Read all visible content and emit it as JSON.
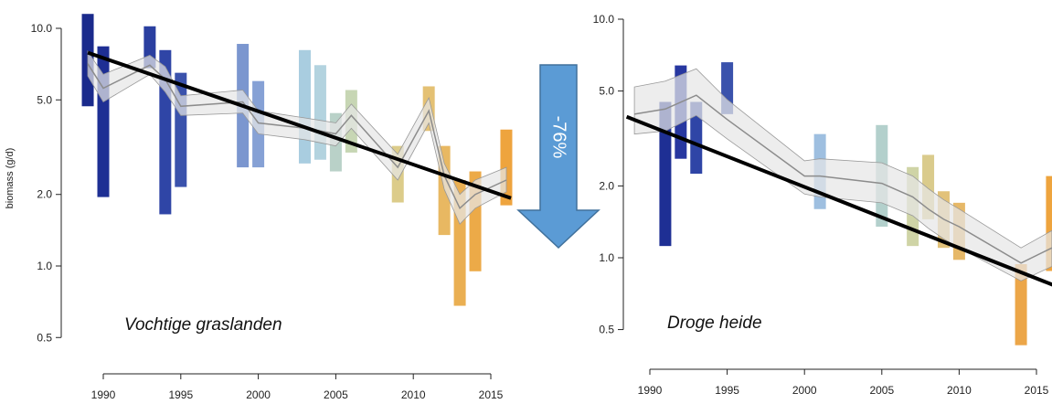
{
  "chart_data": [
    {
      "type": "line",
      "title": "Vochtige graslanden",
      "ylabel": "biomass (g/d)",
      "xlabel": "",
      "y_scale": "log",
      "ylim": [
        0.45,
        11.5
      ],
      "xlim": [
        1988.5,
        2016.5
      ],
      "y_ticks": [
        10.0,
        5.0,
        2.0,
        1.0,
        0.5
      ],
      "y_tick_labels": [
        "10.0",
        "5.0",
        "2.0",
        "1.0",
        "0.5"
      ],
      "x_ticks": [
        1990,
        1995,
        2000,
        2005,
        2010,
        2015
      ],
      "x_tick_labels": [
        "1990",
        "1995",
        "2000",
        "2005",
        "2010",
        "2015"
      ],
      "ranges": [
        {
          "x": 1989,
          "low": 4.7,
          "high": 11.5,
          "color": "#1a2a8c"
        },
        {
          "x": 1990,
          "low": 1.95,
          "high": 8.4,
          "color": "#1e2f94"
        },
        {
          "x": 1993,
          "low": 6.8,
          "high": 10.2,
          "color": "#2a3fa0"
        },
        {
          "x": 1994,
          "low": 1.65,
          "high": 8.1,
          "color": "#2f45a6"
        },
        {
          "x": 1995,
          "low": 2.15,
          "high": 6.5,
          "color": "#3a52ac"
        },
        {
          "x": 1999,
          "low": 2.6,
          "high": 8.6,
          "color": "#7b96cf"
        },
        {
          "x": 2000,
          "low": 2.6,
          "high": 6.0,
          "color": "#86a1d5"
        },
        {
          "x": 2003,
          "low": 2.7,
          "high": 8.1,
          "color": "#a9cde0"
        },
        {
          "x": 2004,
          "low": 2.8,
          "high": 7.0,
          "color": "#b3d3df"
        },
        {
          "x": 2005,
          "low": 2.5,
          "high": 4.4,
          "color": "#b9d1c8"
        },
        {
          "x": 2006,
          "low": 3.0,
          "high": 5.5,
          "color": "#c7d6b4"
        },
        {
          "x": 2009,
          "low": 1.85,
          "high": 3.2,
          "color": "#dccc8a"
        },
        {
          "x": 2011,
          "low": 3.7,
          "high": 5.7,
          "color": "#e4c174"
        },
        {
          "x": 2012,
          "low": 1.35,
          "high": 3.2,
          "color": "#e8b862"
        },
        {
          "x": 2013,
          "low": 0.68,
          "high": 2.3,
          "color": "#eaaf52"
        },
        {
          "x": 2014,
          "low": 0.95,
          "high": 2.5,
          "color": "#ecaa48"
        },
        {
          "x": 2016,
          "low": 1.8,
          "high": 3.75,
          "color": "#eea43e"
        }
      ],
      "model": {
        "x": [
          1989,
          1990,
          1993,
          1994,
          1995,
          1999,
          2000,
          2003,
          2004,
          2005,
          2006,
          2009,
          2011,
          2012,
          2013,
          2014,
          2016
        ],
        "mean": [
          7.1,
          5.6,
          7.0,
          6.1,
          4.7,
          4.9,
          4.0,
          3.8,
          3.7,
          3.6,
          4.3,
          2.6,
          4.5,
          2.4,
          1.75,
          2.0,
          2.3
        ],
        "lower": [
          6.3,
          4.9,
          6.4,
          5.4,
          4.3,
          4.4,
          3.6,
          3.4,
          3.3,
          3.2,
          3.8,
          2.3,
          4.0,
          2.1,
          1.5,
          1.75,
          2.05
        ],
        "upper": [
          8.0,
          6.4,
          7.7,
          6.9,
          5.2,
          5.5,
          4.5,
          4.2,
          4.1,
          4.0,
          4.8,
          2.95,
          5.1,
          2.7,
          2.0,
          2.3,
          2.6
        ]
      },
      "trend": {
        "x": [
          1989,
          2016.3
        ],
        "y": [
          7.9,
          1.93
        ]
      }
    },
    {
      "type": "line",
      "title": "Droge heide",
      "ylabel": "",
      "xlabel": "",
      "y_scale": "log",
      "ylim": [
        0.43,
        10.0
      ],
      "xlim": [
        1988.5,
        2016.5
      ],
      "y_ticks": [
        10.0,
        5.0,
        2.0,
        1.0,
        0.5
      ],
      "y_tick_labels": [
        "10.0",
        "5.0",
        "2.0",
        "1.0",
        "0.5"
      ],
      "x_ticks": [
        1990,
        1995,
        2000,
        2005,
        2010,
        2015
      ],
      "x_tick_labels": [
        "1990",
        "1995",
        "2000",
        "2005",
        "2010",
        "2015"
      ],
      "ranges": [
        {
          "x": 1991,
          "low": 1.12,
          "high": 4.5,
          "color": "#1e2f94"
        },
        {
          "x": 1992,
          "low": 2.6,
          "high": 6.4,
          "color": "#2737a0"
        },
        {
          "x": 1993,
          "low": 2.25,
          "high": 4.5,
          "color": "#2f45a6"
        },
        {
          "x": 1995,
          "low": 4.0,
          "high": 6.6,
          "color": "#3a52ac"
        },
        {
          "x": 2001,
          "low": 1.6,
          "high": 3.3,
          "color": "#9ebfe0"
        },
        {
          "x": 2005,
          "low": 1.35,
          "high": 3.6,
          "color": "#b3d0cc"
        },
        {
          "x": 2007,
          "low": 1.12,
          "high": 2.4,
          "color": "#cfd4a6"
        },
        {
          "x": 2008,
          "low": 1.45,
          "high": 2.7,
          "color": "#dacb8c"
        },
        {
          "x": 2009,
          "low": 1.1,
          "high": 1.9,
          "color": "#e2c27a"
        },
        {
          "x": 2010,
          "low": 0.98,
          "high": 1.7,
          "color": "#e6b868"
        },
        {
          "x": 2014,
          "low": 0.43,
          "high": 0.94,
          "color": "#eca648"
        },
        {
          "x": 2016,
          "low": 0.88,
          "high": 2.2,
          "color": "#eea43e"
        }
      ],
      "model": {
        "x": [
          1989,
          1991,
          1993,
          1995,
          2000,
          2001,
          2005,
          2007,
          2008,
          2009,
          2010,
          2014,
          2016
        ],
        "mean": [
          4.0,
          4.2,
          4.8,
          3.8,
          2.2,
          2.2,
          2.05,
          1.8,
          1.6,
          1.45,
          1.35,
          0.95,
          1.1
        ],
        "lower": [
          3.3,
          3.4,
          3.95,
          3.15,
          1.85,
          1.8,
          1.7,
          1.5,
          1.33,
          1.2,
          1.1,
          0.8,
          0.92
        ],
        "upper": [
          5.2,
          5.5,
          6.2,
          4.6,
          2.55,
          2.6,
          2.5,
          2.2,
          1.95,
          1.75,
          1.6,
          1.1,
          1.3
        ]
      },
      "trend": {
        "x": [
          1988.5,
          2016.5
        ],
        "y": [
          3.9,
          0.75
        ]
      }
    }
  ],
  "annotation": {
    "text": "-76%",
    "colors": {
      "fill": "#5b9bd5",
      "stroke": "#41719c",
      "text": "#ffffff"
    }
  },
  "colors": {
    "band_fill": "#e6e6e6",
    "band_stroke": "#999999",
    "model_line": "#8c8c8c",
    "trend_line": "#000000",
    "axis": "#222222"
  }
}
